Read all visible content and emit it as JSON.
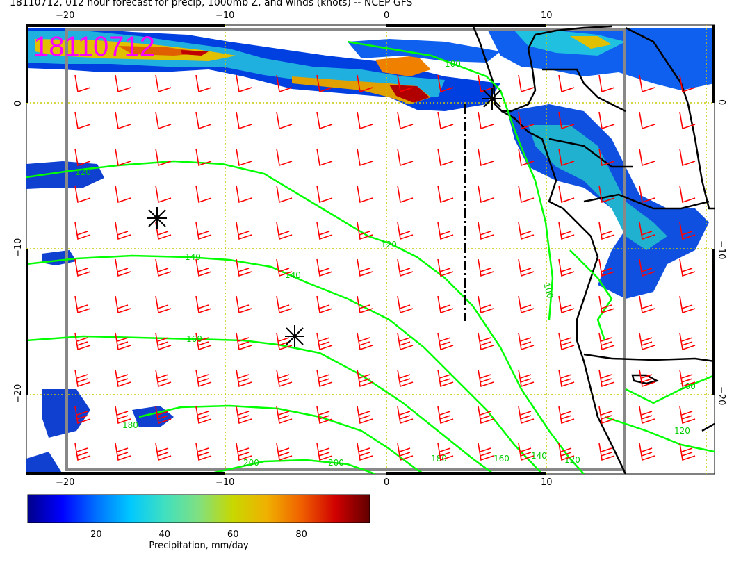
{
  "title": "18110712, 012 hour forecast for precip, 1000mb Z, and winds (knots) -- NCEP GFS",
  "stamp": "18110712",
  "axes": {
    "lon_ticks": [
      "−20",
      "−10",
      "0",
      "10"
    ],
    "lat_ticks": [
      "0",
      "−10",
      "−20"
    ]
  },
  "contours": [
    {
      "label": "100",
      "value": 100
    },
    {
      "label": "120",
      "value": 120
    },
    {
      "label": "140",
      "value": 140
    },
    {
      "label": "160",
      "value": 160
    },
    {
      "label": "180",
      "value": 180
    },
    {
      "label": "200",
      "value": 200
    }
  ],
  "colorbar": {
    "label": "Precipitation, mm/day",
    "ticks": [
      "20",
      "40",
      "60",
      "80"
    ],
    "range": [
      0,
      100
    ],
    "colors": [
      "#00008b",
      "#0000ff",
      "#0070ff",
      "#00c8ff",
      "#40e0c0",
      "#80e080",
      "#c8d800",
      "#f0b000",
      "#f06000",
      "#d00000",
      "#600000"
    ]
  },
  "colors": {
    "wind": "#ff0000",
    "contour": "#00ff00",
    "stamp": "#ff00ff",
    "coast": "#000000",
    "grid": "#c8c800"
  }
}
